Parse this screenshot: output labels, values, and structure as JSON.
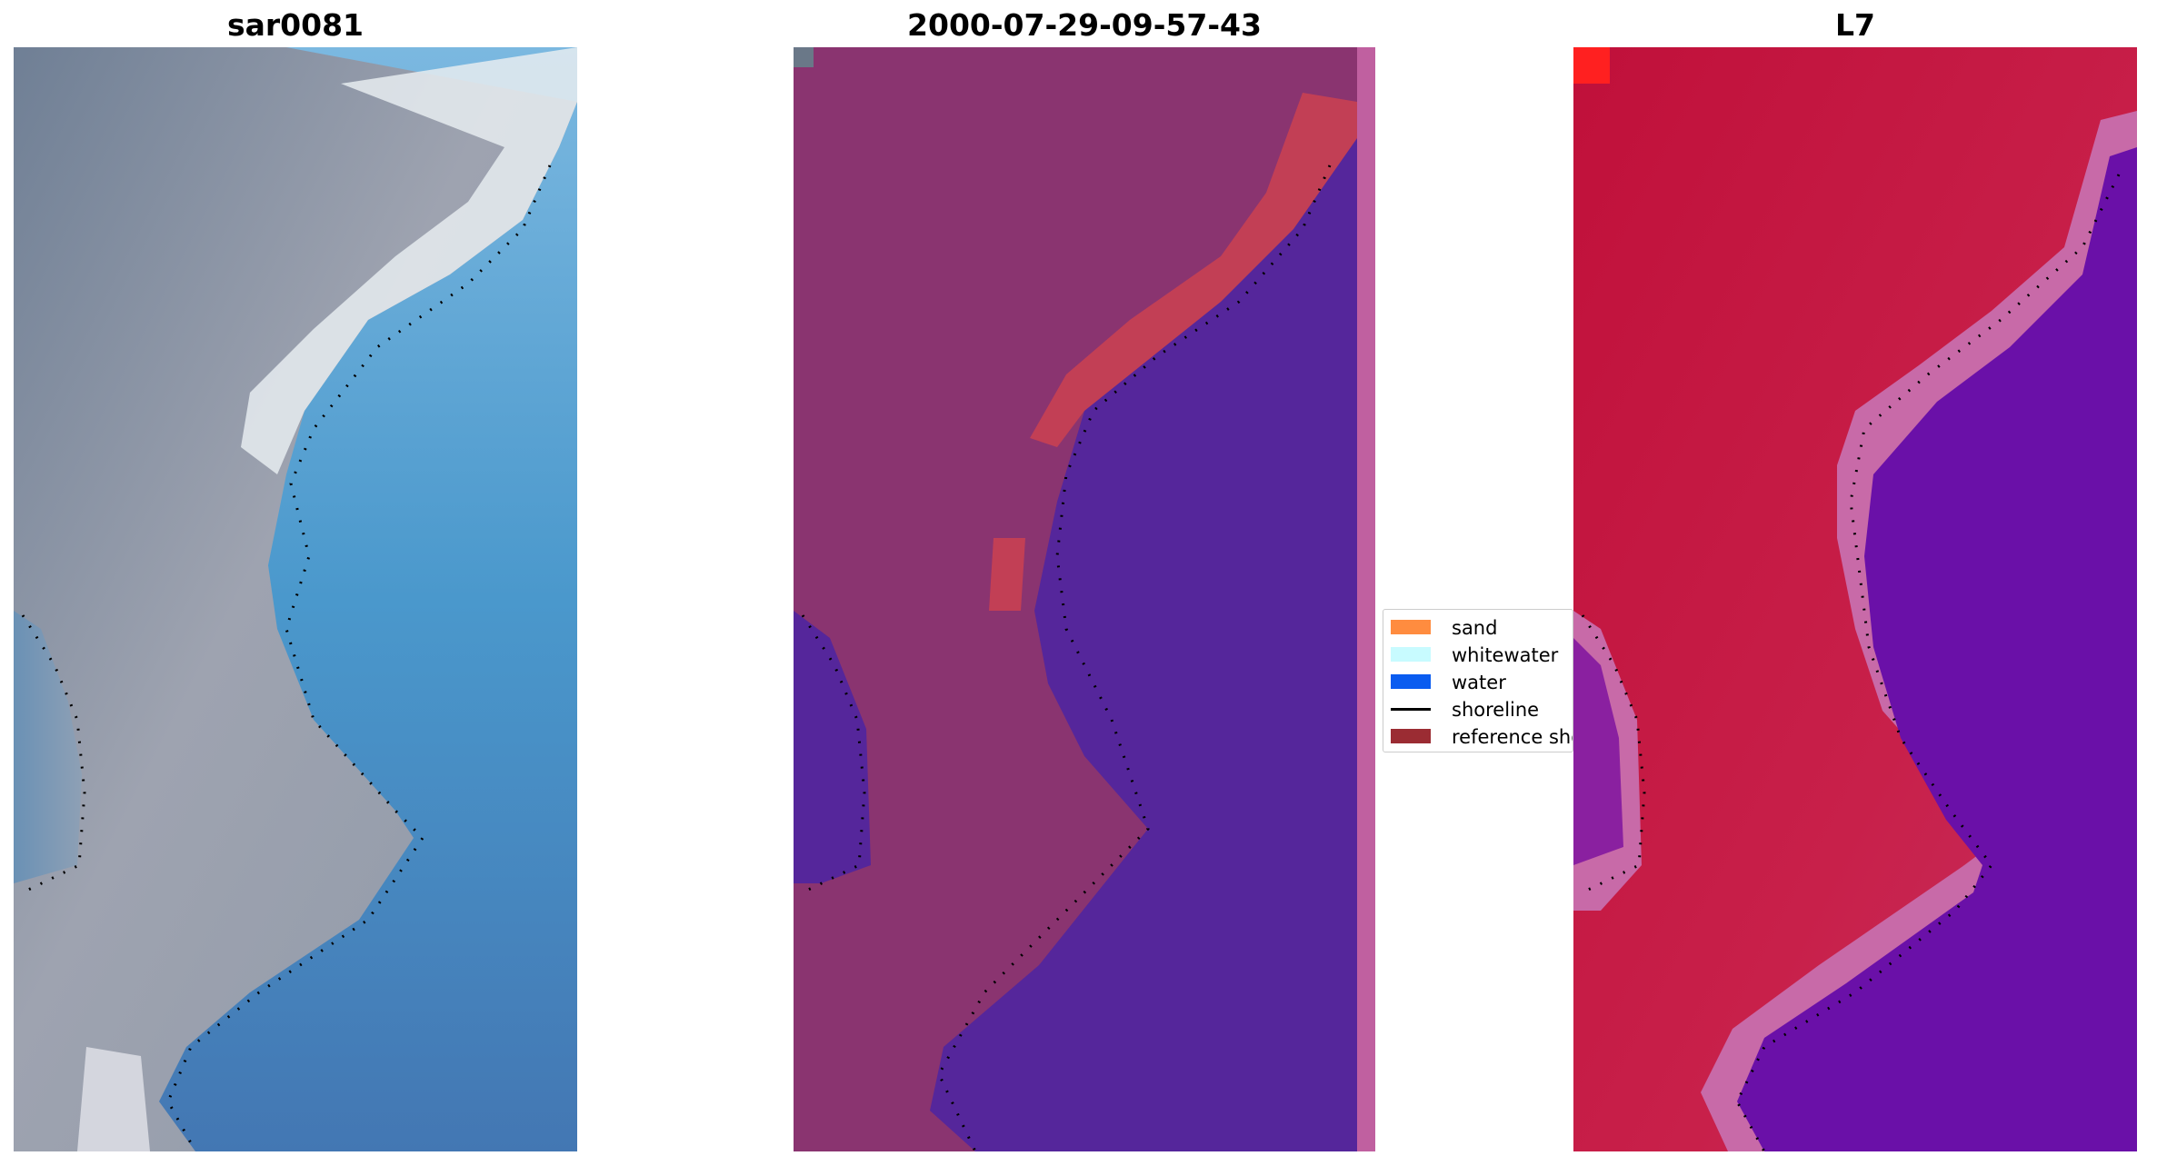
{
  "panels": [
    {
      "title": "sar0081"
    },
    {
      "title": "2000-07-29-09-57-43"
    },
    {
      "title": "L7"
    }
  ],
  "legend": {
    "items": [
      {
        "label": "sand",
        "color": "#ff8c3f",
        "kind": "patch"
      },
      {
        "label": "whitewater",
        "color": "#c8fbff",
        "kind": "patch"
      },
      {
        "label": "water",
        "color": "#0a5cf0",
        "kind": "patch"
      },
      {
        "label": "shoreline",
        "color": "#000000",
        "kind": "line"
      },
      {
        "label": "reference shoreline",
        "color": "#9b2c33",
        "kind": "patch"
      }
    ]
  },
  "colors": {
    "rgb_sand": "#a2a6b0",
    "rgb_water": "#4a88c4",
    "rgb_whitewater": "#e6ecf0",
    "classified_land": "#8a3470",
    "classified_water": "#55269b",
    "classified_reference": "#c23f55",
    "classified_edge": "#c060a0",
    "ndwi_land": "#c81845",
    "ndwi_water": "#6a10a8",
    "ndwi_transition": "#c86aa8"
  }
}
